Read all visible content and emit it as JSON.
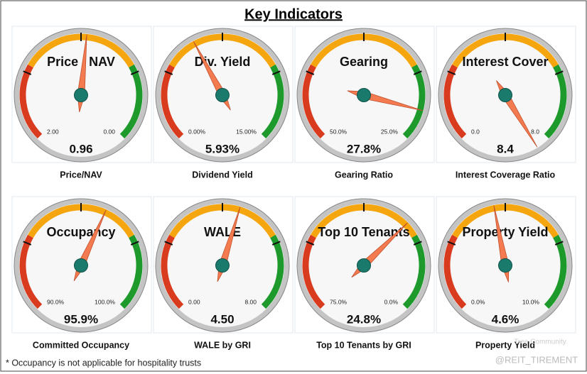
{
  "title": "Key Indicators",
  "footnote": "* Occupancy is not applicable for hospitality trusts",
  "watermarks": [
    "Tree Community",
    "@REIT_TIREMENT"
  ],
  "chart_data": [
    {
      "type": "gauge",
      "title": "Price / NAV",
      "caption": "Price/NAV",
      "value": 0.96,
      "ylim": [
        2,
        0
      ],
      "yticks": [
        {
          "value": 2,
          "label": "2.00"
        },
        {
          "value": 0,
          "label": "0.00"
        }
      ]
    },
    {
      "type": "gauge",
      "title": "Div. Yield",
      "caption": "Dividend Yield",
      "value": 5.93,
      "value_labels": "5.93%",
      "ylim": [
        0,
        15
      ],
      "yticks": [
        {
          "value": 0,
          "label": "0.00%"
        },
        {
          "value": 15,
          "label": "15.00%"
        }
      ]
    },
    {
      "type": "gauge",
      "title": "Gearing",
      "caption": "Gearing Ratio",
      "value": 27.8,
      "value_labels": "27.8%",
      "ylim": [
        50,
        25
      ],
      "yticks": [
        {
          "value": 50,
          "label": "50.0%"
        },
        {
          "value": 25,
          "label": "25.0%"
        }
      ]
    },
    {
      "type": "gauge",
      "title": "Interest Cover",
      "caption": "Interest Coverage Ratio",
      "value": 8.4,
      "ylim": [
        0,
        8
      ],
      "yticks": [
        {
          "value": 0,
          "label": "0.0"
        },
        {
          "value": 8,
          "label": "8.0"
        }
      ]
    },
    {
      "type": "gauge",
      "title": "Occupancy",
      "caption": "Committed Occupancy",
      "value": 95.9,
      "value_labels": "95.9%",
      "ylim": [
        90,
        100
      ],
      "yticks": [
        {
          "value": 90,
          "label": "90.0%"
        },
        {
          "value": 100,
          "label": "100.0%"
        }
      ]
    },
    {
      "type": "gauge",
      "title": "WALE",
      "caption": "WALE by GRI",
      "value": 4.5,
      "value_labels": "4.50",
      "ylim": [
        0,
        8
      ],
      "yticks": [
        {
          "value": 0,
          "label": "0.00"
        },
        {
          "value": 8,
          "label": "8.00"
        }
      ]
    },
    {
      "type": "gauge",
      "title": "Top 10 Tenants",
      "caption": "Top 10 Tenants by GRI",
      "value": 24.8,
      "value_labels": "24.8%",
      "ylim": [
        75,
        0
      ],
      "yticks": [
        {
          "value": 75,
          "label": "75.0%"
        },
        {
          "value": 0,
          "label": "0.0%"
        }
      ]
    },
    {
      "type": "gauge",
      "title": "Property Yield",
      "caption": "Property Yield",
      "value": 4.6,
      "value_labels": "4.6%",
      "ylim": [
        0,
        10
      ],
      "yticks": [
        {
          "value": 0,
          "label": "0.0%"
        },
        {
          "value": 10,
          "label": "10.0%"
        }
      ]
    }
  ]
}
